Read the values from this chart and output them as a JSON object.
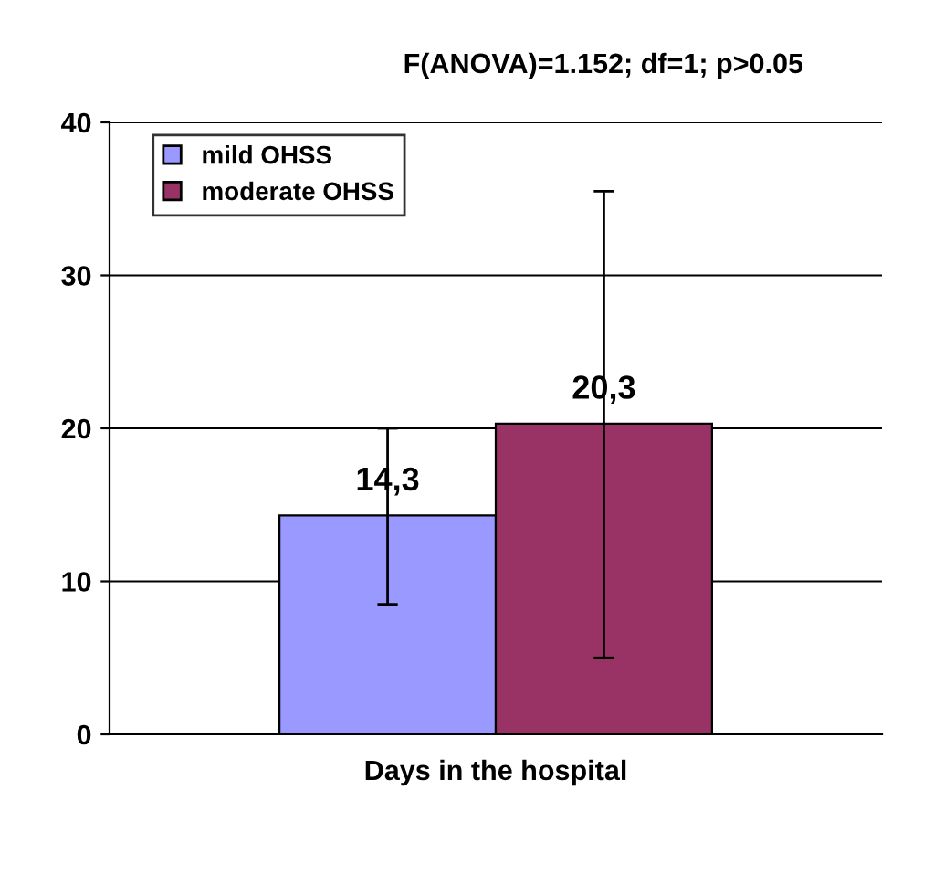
{
  "chart_data": {
    "type": "bar",
    "title": "F(ANOVA)=1.152; df=1; p>0.05",
    "categories": [
      "Days in the hospital"
    ],
    "series": [
      {
        "name": "mild OHSS",
        "color": "#9999ff",
        "values": [
          14.3
        ],
        "errors": [
          [
            8.5,
            20
          ]
        ],
        "value_labels": [
          "14,3"
        ]
      },
      {
        "name": "moderate OHSS",
        "color": "#993366",
        "values": [
          20.3
        ],
        "errors": [
          [
            5,
            35.5
          ]
        ],
        "value_labels": [
          "20,3"
        ]
      }
    ],
    "ylim": [
      0,
      40
    ],
    "yticks": [
      0,
      10,
      20,
      30,
      40
    ],
    "grid": "y",
    "legend": "top left"
  }
}
